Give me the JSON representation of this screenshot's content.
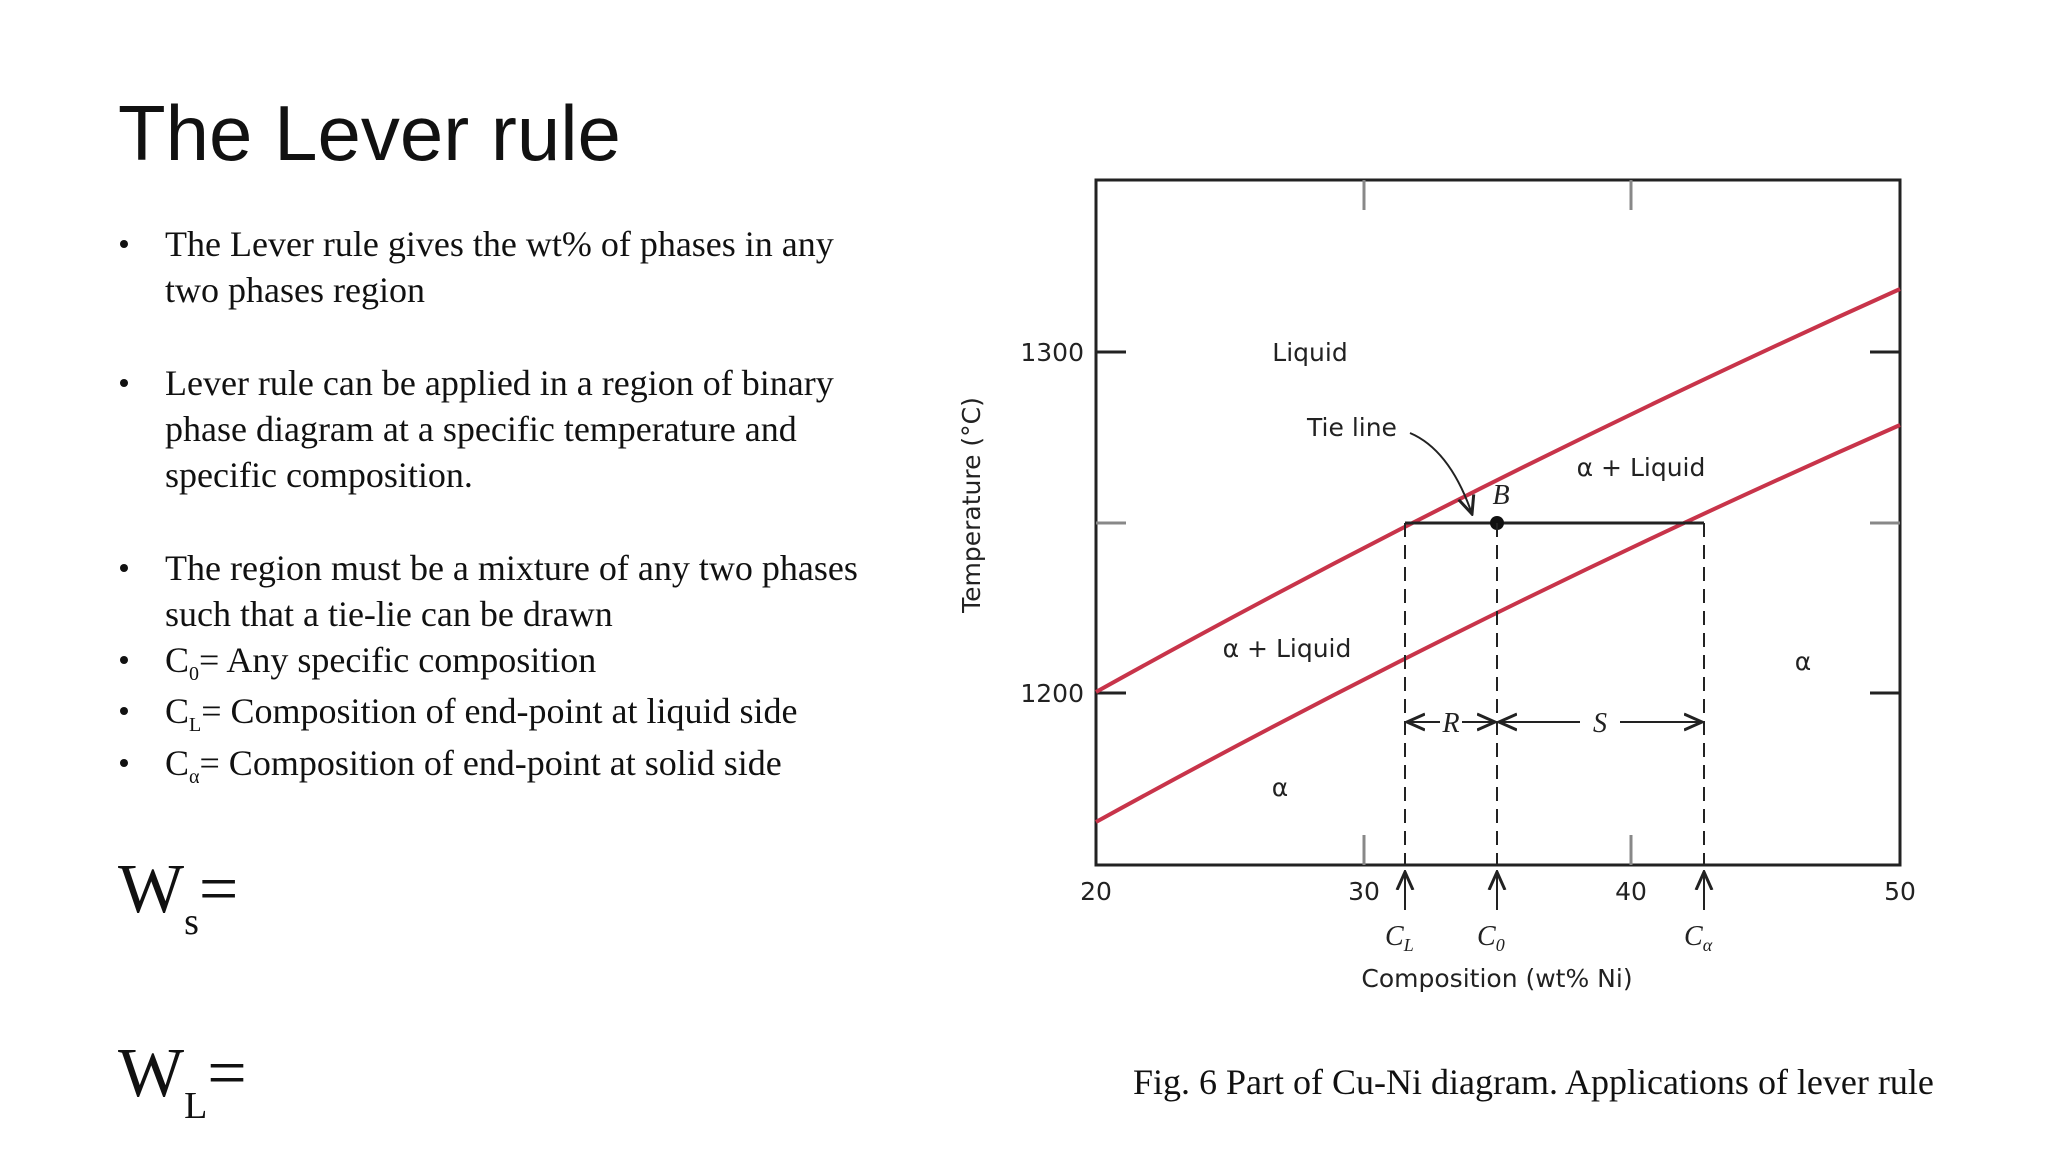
{
  "title": "The Lever rule",
  "bullets": [
    {
      "lines": [
        "The Lever rule gives the wt% of phases in any",
        "two phases region"
      ]
    },
    {
      "lines": [
        "Lever rule can be applied in a region of binary",
        "phase diagram at a specific temperature and",
        "specific composition."
      ]
    },
    {
      "lines": [
        "The region must be a mixture of any two phases",
        "such that a tie-lie can be drawn"
      ]
    },
    {
      "symbol": "C",
      "sub": "0",
      "text": "= Any specific composition"
    },
    {
      "symbol": "C",
      "sub": "L",
      "text": "= Composition of end-point at liquid side"
    },
    {
      "symbol": "C",
      "sub": "α",
      "text": "= Composition of end-point at solid side"
    }
  ],
  "formulas": [
    {
      "symbol": "W",
      "sub": "s",
      "text": "="
    },
    {
      "symbol": "W",
      "sub": "L",
      "text": "="
    }
  ],
  "figure": {
    "y_axis_label": "Temperature (°C)",
    "x_axis_label": "Composition (wt% Ni)",
    "x_ticks": [
      "20",
      "30",
      "40",
      "50"
    ],
    "y_ticks": [
      "1300",
      "1200"
    ],
    "regions": [
      "Liquid",
      "α + Liquid",
      "α + Liquid",
      "α",
      "α"
    ],
    "tie_line_label": "Tie line",
    "point_label": "B",
    "segments": [
      "R",
      "S"
    ],
    "compositions": [
      {
        "symbol": "C",
        "sub": "L"
      },
      {
        "symbol": "C",
        "sub": "0"
      },
      {
        "symbol": "C",
        "sub": "α"
      }
    ],
    "caption": "Fig. 6 Part of  Cu-Ni diagram. Applications of lever rule"
  }
}
